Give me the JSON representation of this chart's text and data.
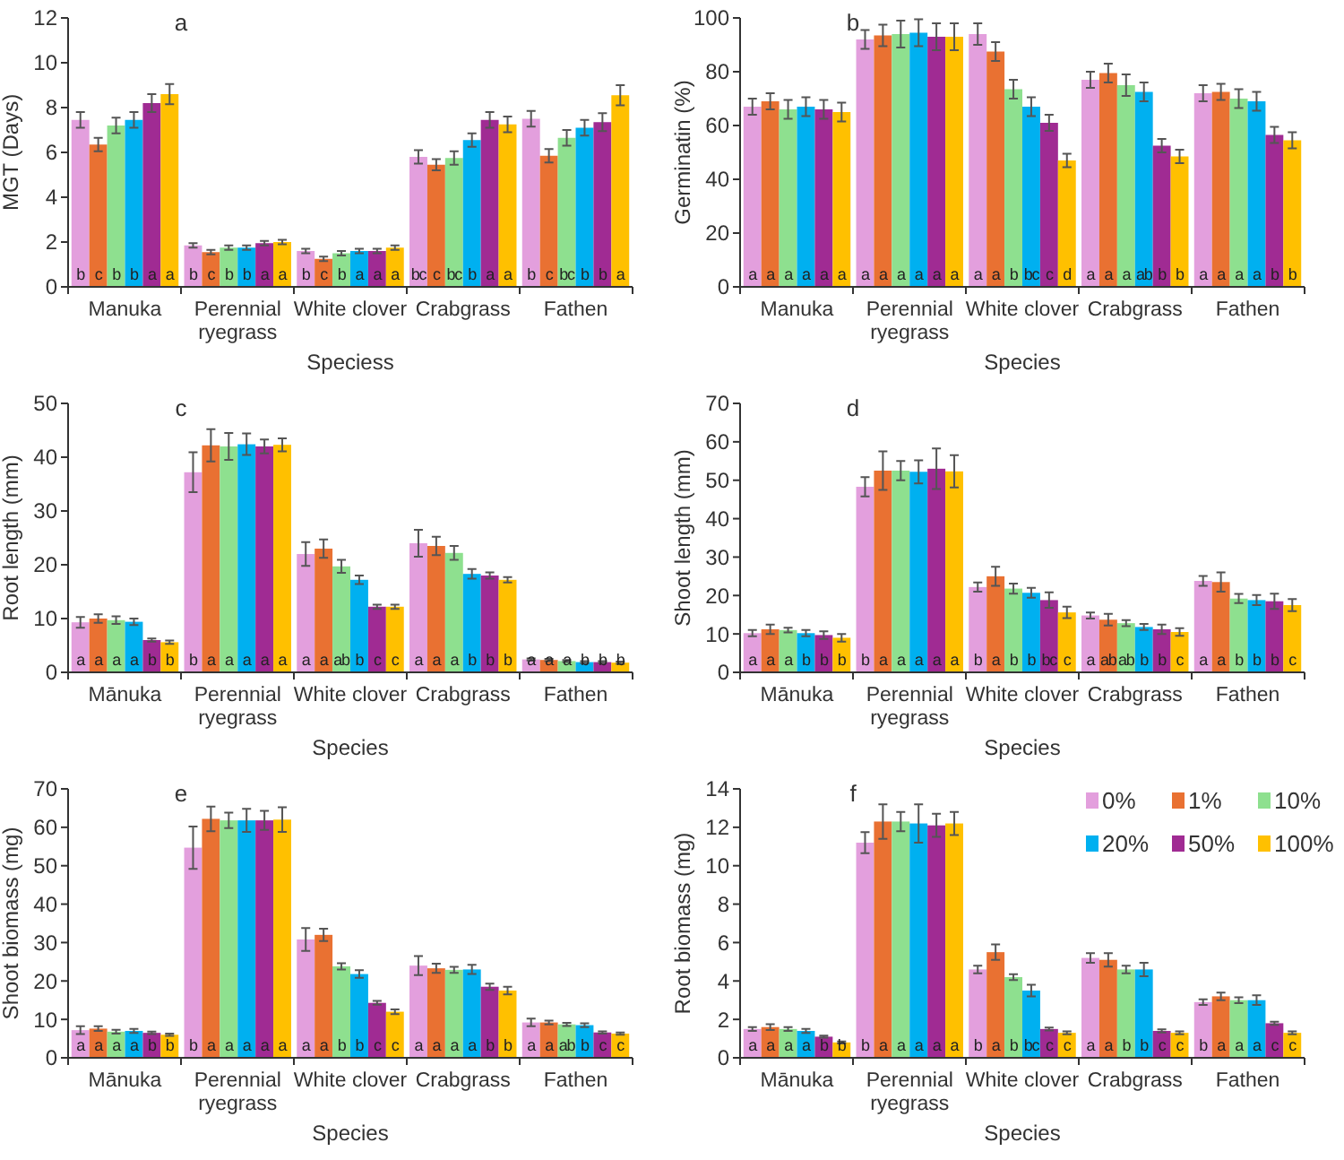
{
  "chart_data": [
    {
      "type": "bar",
      "title": "a",
      "xlabel": "Speciess",
      "ylabel": "MGT (Days)",
      "categories": [
        "Manuka",
        "Perennial ryegrass",
        "White clover",
        "Crabgrass",
        "Fathen"
      ],
      "ylim": [
        0,
        12
      ],
      "yticks": [
        0,
        2,
        4,
        6,
        8,
        10,
        12
      ],
      "series": [
        {
          "color": "#e39fdd",
          "values": [
            7.45,
            1.85,
            1.6,
            5.8,
            7.5
          ],
          "errors": [
            0.35,
            0.1,
            0.1,
            0.3,
            0.35
          ],
          "value_labels": [
            "b",
            "b",
            "b",
            "bc",
            "b"
          ]
        },
        {
          "color": "#e97132",
          "values": [
            6.35,
            1.55,
            1.25,
            5.45,
            5.85
          ],
          "errors": [
            0.3,
            0.1,
            0.1,
            0.25,
            0.3
          ],
          "value_labels": [
            "c",
            "c",
            "c",
            "c",
            "c"
          ]
        },
        {
          "color": "#8ee08f",
          "values": [
            7.2,
            1.75,
            1.5,
            5.75,
            6.65
          ],
          "errors": [
            0.35,
            0.1,
            0.1,
            0.3,
            0.35
          ],
          "value_labels": [
            "b",
            "b",
            "b",
            "bc",
            "bc"
          ]
        },
        {
          "color": "#00b0f0",
          "values": [
            7.45,
            1.75,
            1.6,
            6.55,
            7.1
          ],
          "errors": [
            0.35,
            0.1,
            0.1,
            0.3,
            0.35
          ],
          "value_labels": [
            "b",
            "b",
            "a",
            "b",
            "b"
          ]
        },
        {
          "color": "#a02b93",
          "values": [
            8.2,
            1.95,
            1.6,
            7.45,
            7.35
          ],
          "errors": [
            0.4,
            0.1,
            0.1,
            0.35,
            0.4
          ],
          "value_labels": [
            "a",
            "a",
            "a",
            "a",
            "b"
          ]
        },
        {
          "color": "#ffc000",
          "values": [
            8.6,
            2.0,
            1.75,
            7.25,
            8.55
          ],
          "errors": [
            0.45,
            0.1,
            0.1,
            0.35,
            0.45
          ],
          "value_labels": [
            "a",
            "a",
            "a",
            "a",
            "a"
          ]
        }
      ]
    },
    {
      "type": "bar",
      "title": "b",
      "xlabel": "Species",
      "ylabel": "Germinatin (%)",
      "categories": [
        "Manuka",
        "Perennial ryegrass",
        "White clover",
        "Crabgrass",
        "Fathen"
      ],
      "ylim": [
        0,
        100
      ],
      "yticks": [
        0,
        20,
        40,
        60,
        80,
        100
      ],
      "series": [
        {
          "color": "#e39fdd",
          "values": [
            67,
            92,
            94,
            77,
            72
          ],
          "errors": [
            3,
            3.5,
            4,
            3,
            3
          ],
          "value_labels": [
            "a",
            "a",
            "a",
            "a",
            "a"
          ]
        },
        {
          "color": "#e97132",
          "values": [
            69,
            93.5,
            87.5,
            79.5,
            72.5
          ],
          "errors": [
            3,
            4,
            3.5,
            3.5,
            3
          ],
          "value_labels": [
            "a",
            "a",
            "a",
            "a",
            "a"
          ]
        },
        {
          "color": "#8ee08f",
          "values": [
            66,
            94,
            73.5,
            75,
            70
          ],
          "errors": [
            3.5,
            5,
            3.5,
            4,
            3.5
          ],
          "value_labels": [
            "a",
            "a",
            "b",
            "a",
            "a"
          ]
        },
        {
          "color": "#00b0f0",
          "values": [
            67,
            94.5,
            67,
            72.5,
            69
          ],
          "errors": [
            3.5,
            5,
            3.5,
            3.5,
            3.5
          ],
          "value_labels": [
            "a",
            "a",
            "bc",
            "ab",
            "a"
          ]
        },
        {
          "color": "#a02b93",
          "values": [
            66,
            93,
            61,
            52.5,
            56.5
          ],
          "errors": [
            3.5,
            5,
            3,
            2.5,
            3
          ],
          "value_labels": [
            "a",
            "a",
            "c",
            "b",
            "b"
          ]
        },
        {
          "color": "#ffc000",
          "values": [
            65,
            93,
            47,
            48.5,
            54.5
          ],
          "errors": [
            3.5,
            5,
            2.5,
            2.5,
            3
          ],
          "value_labels": [
            "a",
            "a",
            "d",
            "b",
            "b"
          ]
        }
      ]
    },
    {
      "type": "bar",
      "title": "c",
      "xlabel": "Species",
      "ylabel": "Root length (mm)",
      "categories": [
        "Mānuka",
        "Perennial ryegrass",
        "White clover",
        "Crabgrass",
        "Fathen"
      ],
      "ylim": [
        0,
        50
      ],
      "yticks": [
        0,
        10,
        20,
        30,
        40,
        50
      ],
      "series": [
        {
          "color": "#e39fdd",
          "values": [
            9.3,
            37.2,
            22,
            24,
            2.4
          ],
          "errors": [
            1,
            3.7,
            2.2,
            2.5,
            0.2
          ],
          "value_labels": [
            "a",
            "b",
            "a",
            "a",
            "a"
          ]
        },
        {
          "color": "#e97132",
          "values": [
            10,
            42.2,
            23,
            23.5,
            2.3
          ],
          "errors": [
            0.8,
            3,
            1.7,
            1.7,
            0.2
          ],
          "value_labels": [
            "a",
            "a",
            "a",
            "a",
            "a"
          ]
        },
        {
          "color": "#8ee08f",
          "values": [
            9.7,
            42,
            19.7,
            22.2,
            2.1
          ],
          "errors": [
            0.7,
            2.5,
            1.2,
            1.3,
            0.2
          ],
          "value_labels": [
            "a",
            "a",
            "ab",
            "a",
            "a"
          ]
        },
        {
          "color": "#00b0f0",
          "values": [
            9.4,
            42.4,
            17.2,
            18.3,
            1.9
          ],
          "errors": [
            0.6,
            2,
            0.8,
            0.9,
            0.2
          ],
          "value_labels": [
            "a",
            "a",
            "b",
            "b",
            "b"
          ]
        },
        {
          "color": "#a02b93",
          "values": [
            6,
            42,
            12.2,
            18,
            1.9
          ],
          "errors": [
            0.3,
            1.3,
            0.4,
            0.6,
            0.2
          ],
          "value_labels": [
            "b",
            "a",
            "c",
            "b",
            "b"
          ]
        },
        {
          "color": "#ffc000",
          "values": [
            5.6,
            42.3,
            12.2,
            17.2,
            1.8
          ],
          "errors": [
            0.3,
            1.2,
            0.4,
            0.5,
            0.2
          ],
          "value_labels": [
            "b",
            "a",
            "c",
            "b",
            "b"
          ]
        }
      ]
    },
    {
      "type": "bar",
      "title": "d",
      "xlabel": "Species",
      "ylabel": "Shoot length (mm)",
      "categories": [
        "Mānuka",
        "Perennial ryegrass",
        "White clover",
        "Crabgrass",
        "Fathen"
      ],
      "ylim": [
        0,
        70
      ],
      "yticks": [
        0,
        10,
        20,
        30,
        40,
        50,
        60,
        70
      ],
      "series": [
        {
          "color": "#e39fdd",
          "values": [
            10.2,
            48.3,
            22.2,
            14.8,
            23.8
          ],
          "errors": [
            0.8,
            2.5,
            1.2,
            0.8,
            1.3
          ],
          "value_labels": [
            "a",
            "b",
            "b",
            "a",
            "a"
          ]
        },
        {
          "color": "#e97132",
          "values": [
            11.2,
            52.5,
            25,
            13.7,
            23.5
          ],
          "errors": [
            1.2,
            5,
            2.5,
            1.5,
            2.5
          ],
          "value_labels": [
            "a",
            "a",
            "a",
            "ab",
            "a"
          ]
        },
        {
          "color": "#8ee08f",
          "values": [
            11,
            52.5,
            21.8,
            12.8,
            19.2
          ],
          "errors": [
            0.6,
            2.5,
            1.3,
            0.8,
            1.2
          ],
          "value_labels": [
            "a",
            "a",
            "b",
            "ab",
            "b"
          ]
        },
        {
          "color": "#00b0f0",
          "values": [
            10.2,
            52.2,
            20.7,
            11.8,
            18.8
          ],
          "errors": [
            0.8,
            3,
            1.3,
            0.8,
            1.3
          ],
          "value_labels": [
            "b",
            "a",
            "b",
            "b",
            "b"
          ]
        },
        {
          "color": "#a02b93",
          "values": [
            9.7,
            53,
            18.8,
            11.2,
            18.5
          ],
          "errors": [
            1,
            5.3,
            2,
            1.2,
            2
          ],
          "value_labels": [
            "b",
            "a",
            "bc",
            "b",
            "b"
          ]
        },
        {
          "color": "#ffc000",
          "values": [
            9,
            52.3,
            15.6,
            10.5,
            17.5
          ],
          "errors": [
            1,
            4.2,
            1.5,
            1,
            1.6
          ],
          "value_labels": [
            "b",
            "a",
            "c",
            "c",
            "c"
          ]
        }
      ]
    },
    {
      "type": "bar",
      "title": "e",
      "xlabel": "Species",
      "ylabel": "Shoot biomass (mg)",
      "categories": [
        "Mānuka",
        "Perennial ryegrass",
        "White clover",
        "Crabgrass",
        "Fathen"
      ],
      "ylim": [
        0,
        70
      ],
      "yticks": [
        0,
        10,
        20,
        30,
        40,
        50,
        60,
        70
      ],
      "series": [
        {
          "color": "#e39fdd",
          "values": [
            7.2,
            54.7,
            30.8,
            24,
            9.2
          ],
          "errors": [
            1,
            5.5,
            3,
            2.5,
            1
          ],
          "value_labels": [
            "a",
            "b",
            "a",
            "a",
            "a"
          ]
        },
        {
          "color": "#e97132",
          "values": [
            7.6,
            62.2,
            32,
            23.3,
            9.2
          ],
          "errors": [
            0.6,
            3.2,
            1.6,
            1.2,
            0.5
          ],
          "value_labels": [
            "a",
            "a",
            "a",
            "a",
            "a"
          ]
        },
        {
          "color": "#8ee08f",
          "values": [
            6.8,
            61.8,
            23.8,
            22.9,
            8.7
          ],
          "errors": [
            0.5,
            2,
            0.8,
            0.8,
            0.4
          ],
          "value_labels": [
            "a",
            "a",
            "b",
            "a",
            "ab"
          ]
        },
        {
          "color": "#00b0f0",
          "values": [
            7,
            61.8,
            21.8,
            23,
            8.5
          ],
          "errors": [
            0.5,
            3,
            1,
            1.2,
            0.5
          ],
          "value_labels": [
            "a",
            "a",
            "b",
            "a",
            "b"
          ]
        },
        {
          "color": "#a02b93",
          "values": [
            6.5,
            61.8,
            14.3,
            18.5,
            6.6
          ],
          "errors": [
            0.3,
            2.5,
            0.5,
            0.8,
            0.3
          ],
          "value_labels": [
            "b",
            "a",
            "c",
            "b",
            "c"
          ]
        },
        {
          "color": "#ffc000",
          "values": [
            6,
            62,
            12,
            17.5,
            6.3
          ],
          "errors": [
            0.3,
            3.2,
            0.6,
            1,
            0.3
          ],
          "value_labels": [
            "b",
            "a",
            "c",
            "b",
            "c"
          ]
        }
      ]
    },
    {
      "type": "bar",
      "title": "f",
      "xlabel": "Species",
      "ylabel": "Root biomass (mg)",
      "legend": "top right",
      "categories": [
        "Mānuka",
        "Perennial ryegrass",
        "White clover",
        "Crabgrass",
        "Fathen"
      ],
      "ylim": [
        0,
        14
      ],
      "yticks": [
        0,
        2,
        4,
        6,
        8,
        10,
        12,
        14
      ],
      "series": [
        {
          "name": "0%",
          "color": "#e39fdd",
          "values": [
            1.5,
            11.2,
            4.6,
            5.2,
            2.9
          ],
          "errors": [
            0.1,
            0.55,
            0.2,
            0.25,
            0.15
          ],
          "value_labels": [
            "a",
            "b",
            "b",
            "a",
            "b"
          ]
        },
        {
          "name": "1%",
          "color": "#e97132",
          "values": [
            1.6,
            12.3,
            5.5,
            5.1,
            3.2
          ],
          "errors": [
            0.15,
            0.9,
            0.4,
            0.35,
            0.2
          ],
          "value_labels": [
            "a",
            "a",
            "a",
            "a",
            "a"
          ]
        },
        {
          "name": "10%",
          "color": "#8ee08f",
          "values": [
            1.5,
            12.3,
            4.2,
            4.6,
            3.0
          ],
          "errors": [
            0.1,
            0.5,
            0.15,
            0.2,
            0.15
          ],
          "value_labels": [
            "a",
            "a",
            "b",
            "b",
            "a"
          ]
        },
        {
          "name": "20%",
          "color": "#00b0f0",
          "values": [
            1.4,
            12.2,
            3.5,
            4.6,
            3.0
          ],
          "errors": [
            0.1,
            1,
            0.3,
            0.35,
            0.25
          ],
          "value_labels": [
            "a",
            "a",
            "bc",
            "b",
            "a"
          ]
        },
        {
          "name": "50%",
          "color": "#a02b93",
          "values": [
            1.1,
            12.1,
            1.5,
            1.4,
            1.8
          ],
          "errors": [
            0.05,
            0.6,
            0.08,
            0.08,
            0.08
          ],
          "value_labels": [
            "b",
            "a",
            "c",
            "c",
            "c"
          ]
        },
        {
          "name": "100%",
          "color": "#ffc000",
          "values": [
            0.8,
            12.2,
            1.3,
            1.3,
            1.3
          ],
          "errors": [
            0.05,
            0.6,
            0.08,
            0.08,
            0.08
          ],
          "value_labels": [
            "b",
            "a",
            "c",
            "c",
            "c"
          ]
        }
      ]
    }
  ]
}
